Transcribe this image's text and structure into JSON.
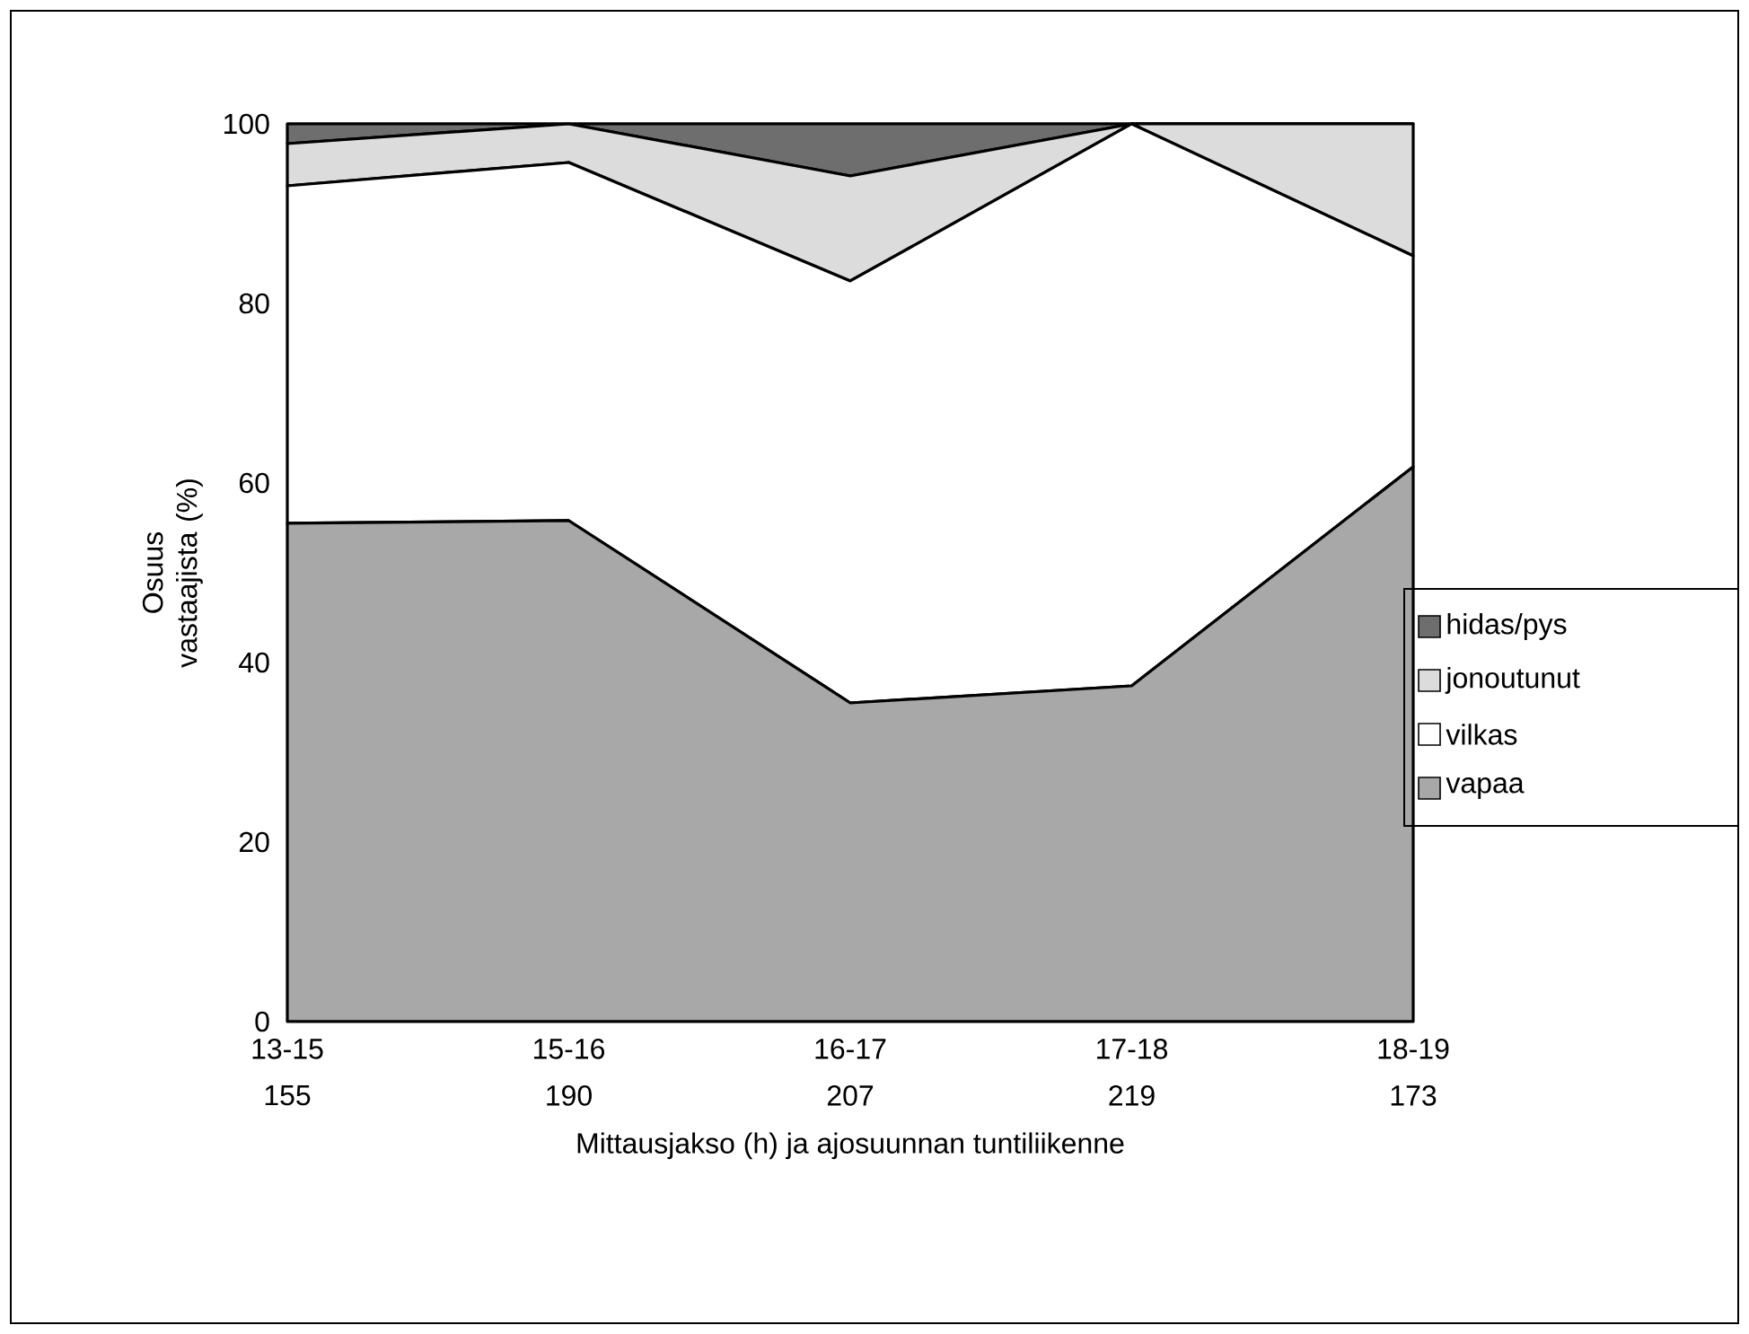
{
  "chart_data": {
    "type": "area",
    "stacked": true,
    "categories": [
      "13-15",
      "15-16",
      "16-17",
      "17-18",
      "18-19"
    ],
    "xlabel": "Mittausjakso (h) ja ajosuunnan tuntiliikenne",
    "ylabel": "Osuus vastaajista (%)",
    "ylim": [
      0,
      100
    ],
    "yticks": [
      0,
      20,
      40,
      60,
      80,
      100
    ],
    "legend": "right",
    "series": [
      {
        "name": "vapaa",
        "color": "#a8a8a8",
        "values": [
          55.5,
          55.8,
          35.5,
          37.4,
          61.8
        ]
      },
      {
        "name": "vilkas",
        "color": "#ffffff",
        "values": [
          37.6,
          39.9,
          47,
          62.6,
          23.5
        ]
      },
      {
        "name": "jonoutunut",
        "color": "#dcdcdc",
        "values": [
          4.7,
          4.3,
          11.7,
          0,
          14.7
        ]
      },
      {
        "name": "hidas/pys",
        "color": "#6e6e6e",
        "values": [
          2.2,
          0,
          5.8,
          0,
          0
        ]
      }
    ],
    "annotations": [
      "155",
      "190",
      "207",
      "219",
      "173"
    ]
  }
}
